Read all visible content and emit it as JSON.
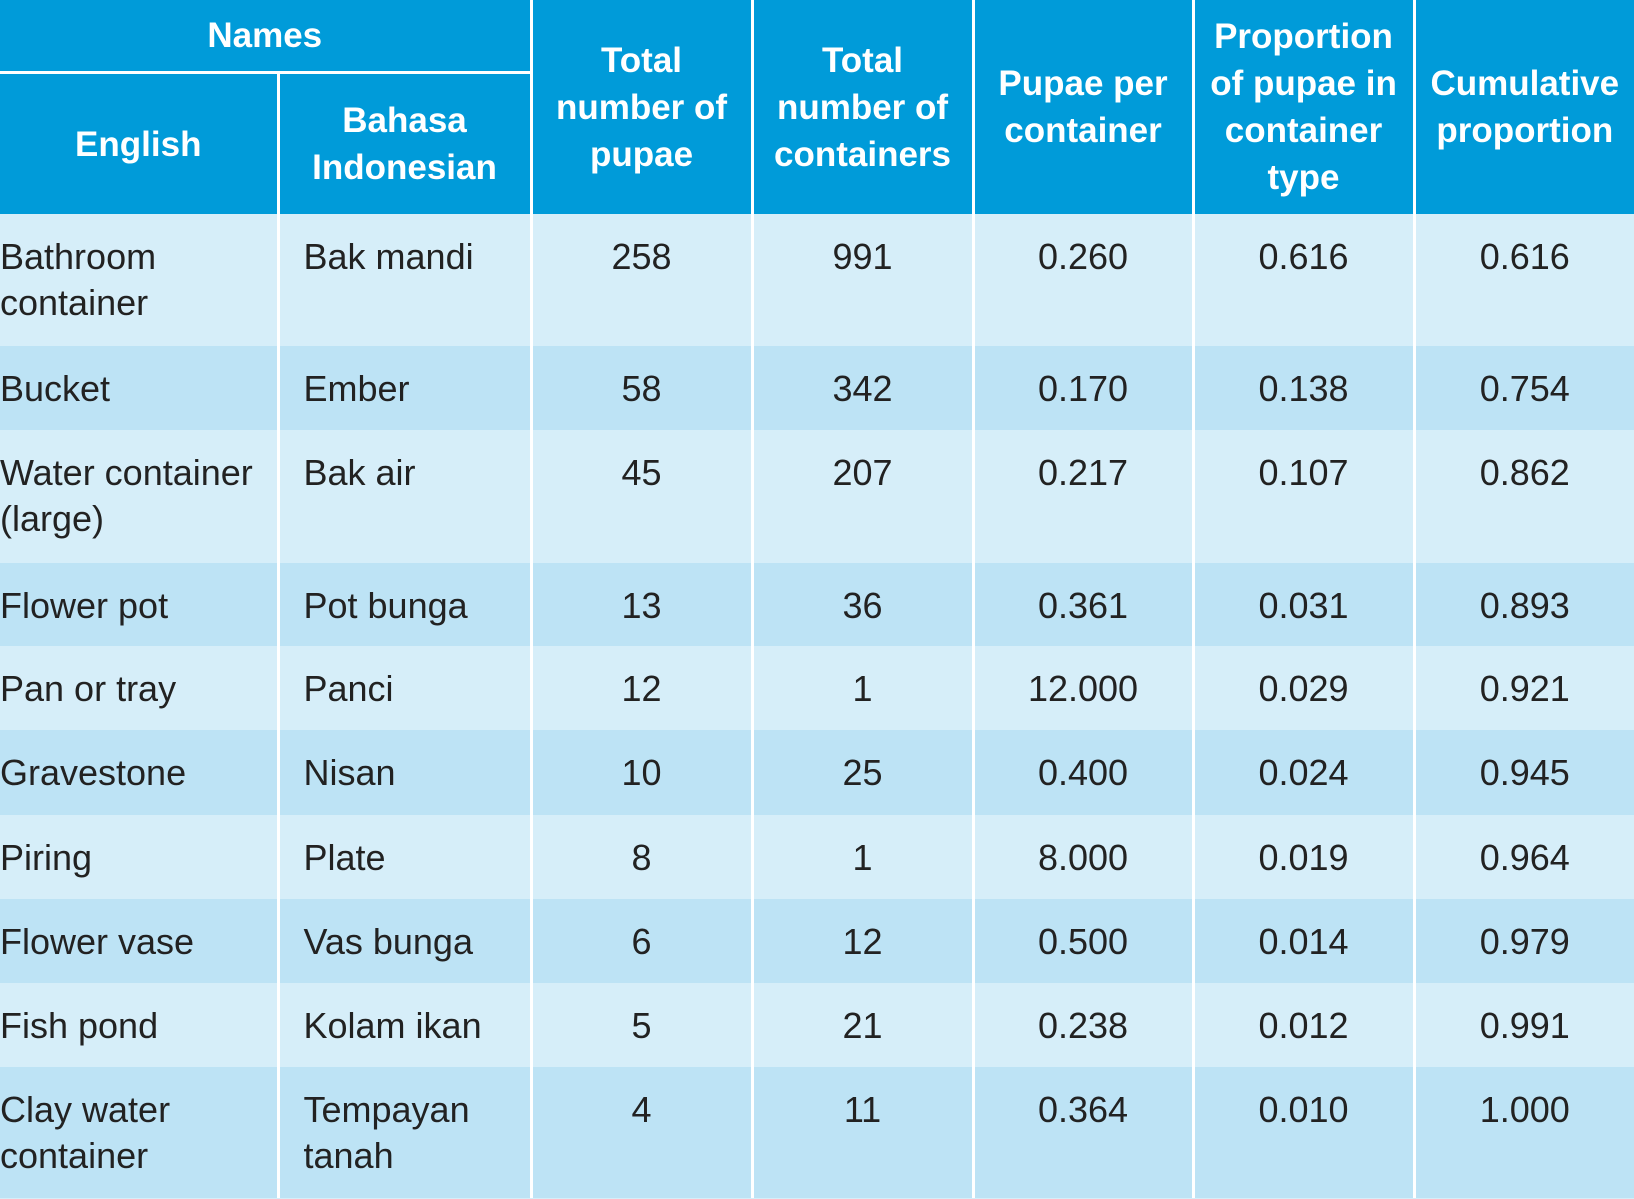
{
  "table": {
    "header": {
      "names_group": "Names",
      "english": "English",
      "bahasa": "Bahasa Indonesian",
      "total_pupae": "Total number of pupae",
      "total_containers": "Total number of containers",
      "pupae_per_container": "Pupae per container",
      "proportion": "Proportion of pupae in container type",
      "cumulative": "Cumulative proportion"
    },
    "rows": [
      {
        "english": "Bathroom container",
        "bahasa": "Bak mandi",
        "pupae": "258",
        "containers": "991",
        "per_container": "0.260",
        "proportion": "0.616",
        "cumulative": "0.616"
      },
      {
        "english": "Bucket",
        "bahasa": "Ember",
        "pupae": "58",
        "containers": "342",
        "per_container": "0.170",
        "proportion": "0.138",
        "cumulative": "0.754"
      },
      {
        "english": "Water container (large)",
        "bahasa": "Bak air",
        "pupae": "45",
        "containers": "207",
        "per_container": "0.217",
        "proportion": "0.107",
        "cumulative": "0.862"
      },
      {
        "english": "Flower pot",
        "bahasa": "Pot bunga",
        "pupae": "13",
        "containers": "36",
        "per_container": "0.361",
        "proportion": "0.031",
        "cumulative": "0.893"
      },
      {
        "english": "Pan or tray",
        "bahasa": "Panci",
        "pupae": "12",
        "containers": "1",
        "per_container": "12.000",
        "proportion": "0.029",
        "cumulative": "0.921"
      },
      {
        "english": "Gravestone",
        "bahasa": "Nisan",
        "pupae": "10",
        "containers": "25",
        "per_container": "0.400",
        "proportion": "0.024",
        "cumulative": "0.945"
      },
      {
        "english": "Piring",
        "bahasa": "Plate",
        "pupae": "8",
        "containers": "1",
        "per_container": "8.000",
        "proportion": "0.019",
        "cumulative": "0.964"
      },
      {
        "english": "Flower vase",
        "bahasa": "Vas bunga",
        "pupae": "6",
        "containers": "12",
        "per_container": "0.500",
        "proportion": "0.014",
        "cumulative": "0.979"
      },
      {
        "english": "Fish pond",
        "bahasa": "Kolam ikan",
        "pupae": "5",
        "containers": "21",
        "per_container": "0.238",
        "proportion": "0.012",
        "cumulative": "0.991"
      },
      {
        "english": "Clay water container",
        "bahasa": "Tempayan tanah",
        "pupae": "4",
        "containers": "11",
        "per_container": "0.364",
        "proportion": "0.010",
        "cumulative": "1.000"
      }
    ]
  },
  "colors": {
    "header_bg": "#009bd9",
    "row_light": "#d6eef9",
    "row_dark": "#bde3f5",
    "text": "#222222"
  }
}
